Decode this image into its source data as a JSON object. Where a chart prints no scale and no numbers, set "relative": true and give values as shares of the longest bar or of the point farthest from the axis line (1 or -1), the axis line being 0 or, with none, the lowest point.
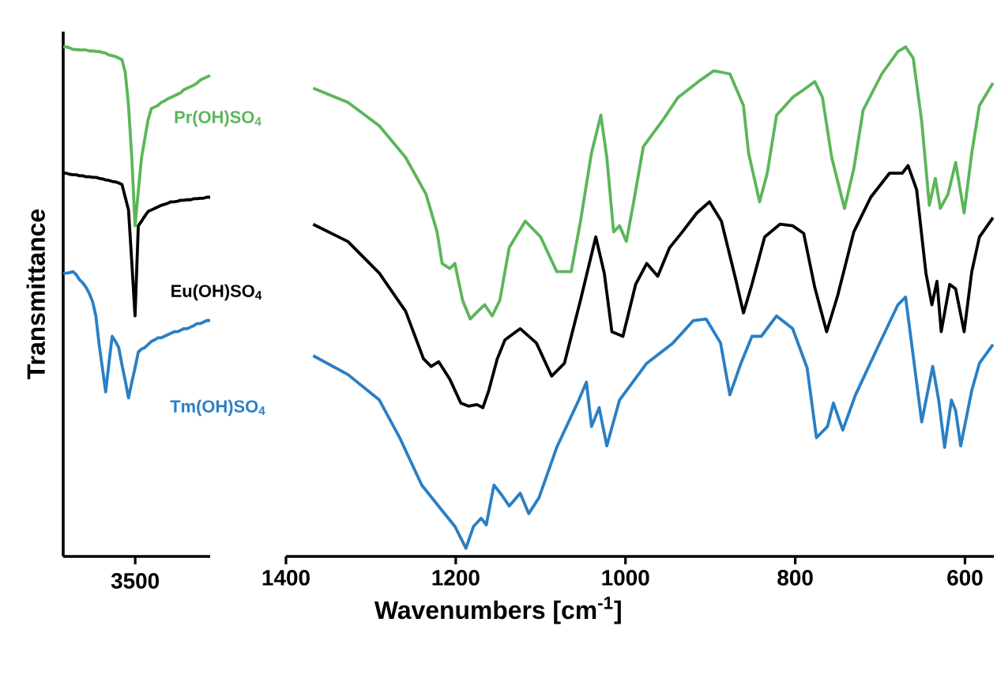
{
  "chart_data": [
    {
      "type": "line",
      "relative": true,
      "tick_labels": false,
      "ylabel": "Transmittance",
      "annotations": [
        "3500"
      ],
      "categories": [
        null,
        null,
        null,
        null,
        null,
        null,
        null,
        null,
        null,
        null,
        null,
        null,
        null,
        null,
        null,
        null,
        null,
        null,
        null,
        null,
        null,
        null,
        null,
        null,
        null,
        null,
        null,
        null,
        null,
        null,
        null,
        null,
        null,
        null,
        null,
        null,
        null,
        null,
        null,
        null,
        null,
        null,
        null,
        null,
        null,
        null
      ],
      "series": [
        {
          "name": "Pr(OH)SO$_{4}$",
          "color": "#5bb65a",
          "values": [
            1.0,
            1.0,
            0.998,
            0.995,
            0.995,
            0.994,
            0.994,
            0.994,
            0.992,
            0.992,
            0.991,
            0.991,
            0.989,
            0.988,
            0.984,
            0.983,
            0.981,
            0.978,
            0.975,
            0.95,
            0.885,
            0.783,
            0.649,
            0.717,
            0.783,
            0.82,
            0.857,
            0.879,
            0.882,
            0.885,
            0.891,
            0.894,
            0.898,
            0.901,
            0.904,
            0.907,
            0.91,
            0.916,
            0.919,
            0.922,
            0.925,
            0.929,
            0.935,
            0.938,
            0.941,
            0.944
          ]
        },
        {
          "name": "Eu(OH)SO$_{4}$",
          "color": "#000000",
          "values": [
            0.752,
            0.752,
            0.75,
            0.749,
            0.749,
            0.747,
            0.747,
            0.745,
            0.745,
            0.744,
            0.744,
            0.742,
            0.741,
            0.739,
            0.738,
            0.736,
            0.735,
            0.733,
            0.73,
            0.705,
            0.68,
            0.578,
            0.472,
            0.649,
            0.658,
            0.668,
            0.677,
            0.68,
            0.683,
            0.686,
            0.689,
            0.691,
            0.693,
            0.696,
            0.696,
            0.697,
            0.699,
            0.699,
            0.7,
            0.7,
            0.702,
            0.702,
            0.703,
            0.703,
            0.705,
            0.705
          ]
        },
        {
          "name": "Tm(OH)SO$_{4}$",
          "color": "#2a7fc4",
          "values": [
            0.556,
            0.556,
            0.557,
            0.559,
            0.553,
            0.543,
            0.537,
            0.528,
            0.516,
            0.5,
            0.472,
            0.416,
            0.37,
            0.323,
            0.379,
            0.432,
            0.422,
            0.41,
            0.376,
            0.345,
            0.311,
            0.342,
            0.37,
            0.401,
            0.407,
            0.41,
            0.416,
            0.422,
            0.425,
            0.429,
            0.429,
            0.432,
            0.435,
            0.438,
            0.441,
            0.441,
            0.444,
            0.447,
            0.447,
            0.45,
            0.453,
            0.457,
            0.457,
            0.46,
            0.463,
            0.463
          ]
        }
      ]
    },
    {
      "type": "line",
      "relative": true,
      "tick_labels": "x",
      "xlabel": "Wavenumbers [cm$^{-1}$]",
      "xlim": [
        1400,
        566
      ],
      "xticks": [
        1400,
        1200,
        1000,
        800,
        600
      ],
      "series": [
        {
          "color": "#5bb65a",
          "x": [
            1368,
            1327,
            1290,
            1259,
            1235,
            1222,
            1216,
            1207,
            1201,
            1192,
            1183,
            1174,
            1166,
            1157,
            1148,
            1137,
            1118,
            1100,
            1081,
            1064,
            1053,
            1040,
            1029,
            1022,
            1014,
            1007,
            999,
            990,
            979,
            957,
            938,
            914,
            896,
            877,
            861,
            855,
            842,
            833,
            822,
            803,
            790,
            777,
            768,
            757,
            742,
            731,
            720,
            698,
            679,
            670,
            661,
            651,
            642,
            635,
            629,
            620,
            611,
            601,
            592,
            583,
            567
          ],
          "values": [
            0.919,
            0.891,
            0.845,
            0.783,
            0.711,
            0.637,
            0.575,
            0.565,
            0.575,
            0.503,
            0.466,
            0.481,
            0.494,
            0.472,
            0.503,
            0.606,
            0.658,
            0.627,
            0.559,
            0.559,
            0.658,
            0.792,
            0.866,
            0.783,
            0.637,
            0.649,
            0.618,
            0.699,
            0.804,
            0.854,
            0.901,
            0.932,
            0.953,
            0.947,
            0.885,
            0.792,
            0.696,
            0.752,
            0.866,
            0.901,
            0.916,
            0.932,
            0.901,
            0.783,
            0.683,
            0.761,
            0.876,
            0.947,
            0.991,
            1.0,
            0.978,
            0.854,
            0.689,
            0.742,
            0.683,
            0.711,
            0.773,
            0.674,
            0.792,
            0.885,
            0.929
          ]
        },
        {
          "color": "#000000",
          "x": [
            1368,
            1327,
            1290,
            1259,
            1238,
            1229,
            1220,
            1207,
            1194,
            1185,
            1175,
            1168,
            1161,
            1151,
            1142,
            1124,
            1105,
            1087,
            1072,
            1053,
            1035,
            1025,
            1016,
            1003,
            988,
            975,
            962,
            948,
            933,
            916,
            901,
            887,
            870,
            861,
            851,
            836,
            818,
            803,
            790,
            777,
            763,
            750,
            731,
            711,
            689,
            674,
            667,
            657,
            646,
            639,
            633,
            628,
            618,
            611,
            601,
            592,
            583,
            567
          ],
          "values": [
            0.652,
            0.618,
            0.556,
            0.481,
            0.388,
            0.373,
            0.382,
            0.348,
            0.301,
            0.295,
            0.298,
            0.292,
            0.326,
            0.388,
            0.425,
            0.447,
            0.419,
            0.354,
            0.379,
            0.503,
            0.627,
            0.556,
            0.441,
            0.432,
            0.534,
            0.575,
            0.55,
            0.606,
            0.637,
            0.674,
            0.696,
            0.658,
            0.543,
            0.478,
            0.534,
            0.627,
            0.652,
            0.649,
            0.634,
            0.528,
            0.441,
            0.512,
            0.637,
            0.705,
            0.752,
            0.752,
            0.767,
            0.72,
            0.556,
            0.494,
            0.54,
            0.441,
            0.534,
            0.525,
            0.441,
            0.559,
            0.627,
            0.665
          ]
        },
        {
          "color": "#2a7fc4",
          "x": [
            1368,
            1327,
            1290,
            1266,
            1240,
            1216,
            1201,
            1188,
            1179,
            1170,
            1164,
            1155,
            1146,
            1137,
            1124,
            1114,
            1102,
            1081,
            1055,
            1046,
            1040,
            1031,
            1022,
            1007,
            975,
            944,
            920,
            905,
            888,
            877,
            864,
            851,
            840,
            822,
            803,
            786,
            775,
            762,
            755,
            744,
            729,
            703,
            679,
            670,
            664,
            651,
            638,
            631,
            624,
            616,
            611,
            605,
            592,
            583,
            567
          ],
          "values": [
            0.394,
            0.357,
            0.307,
            0.233,
            0.14,
            0.09,
            0.059,
            0.016,
            0.059,
            0.075,
            0.062,
            0.14,
            0.121,
            0.099,
            0.124,
            0.084,
            0.115,
            0.214,
            0.307,
            0.342,
            0.255,
            0.292,
            0.217,
            0.307,
            0.379,
            0.419,
            0.463,
            0.466,
            0.419,
            0.317,
            0.379,
            0.432,
            0.432,
            0.472,
            0.447,
            0.37,
            0.233,
            0.255,
            0.301,
            0.248,
            0.317,
            0.41,
            0.494,
            0.509,
            0.432,
            0.264,
            0.373,
            0.307,
            0.214,
            0.307,
            0.286,
            0.217,
            0.326,
            0.379,
            0.416
          ]
        }
      ]
    }
  ]
}
